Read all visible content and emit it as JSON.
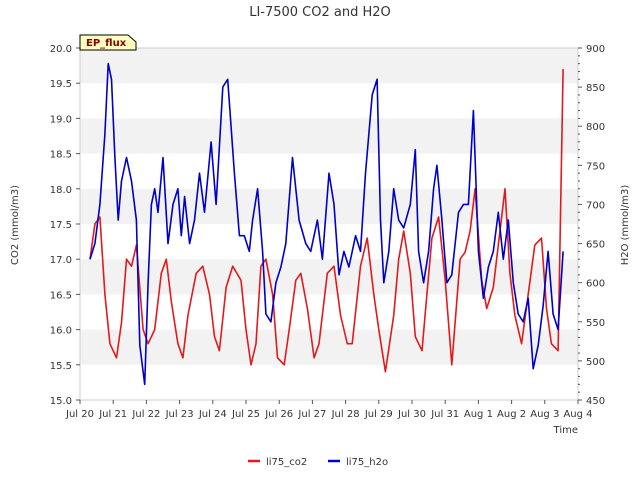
{
  "chart_data": {
    "type": "line",
    "title": "LI-7500 CO2 and H2O",
    "xlabel": "Time",
    "ylabel_left": "CO2 (mmol/m3)",
    "ylabel_right": "H2O (mmol/m3)",
    "badge": "EP_flux",
    "ylim_left": [
      15.0,
      20.0
    ],
    "ylim_right": [
      450,
      900
    ],
    "y_ticks_left": [
      "15.0",
      "15.5",
      "16.0",
      "16.5",
      "17.0",
      "17.5",
      "18.0",
      "18.5",
      "19.0",
      "19.5",
      "20.0"
    ],
    "y_ticks_right": [
      "450",
      "500",
      "550",
      "600",
      "650",
      "700",
      "750",
      "800",
      "850",
      "900"
    ],
    "x_ticks": [
      "Jul 20",
      "Jul 21",
      "Jul 22",
      "Jul 23",
      "Jul 24",
      "Jul 25",
      "Jul 26",
      "Jul 27",
      "Jul 28",
      "Jul 29",
      "Jul 30",
      "Jul 31",
      "Aug 1",
      "Aug 2",
      "Aug 3",
      "Aug 4"
    ],
    "x_range_days": [
      0,
      15
    ],
    "grid": "horizontal bands",
    "legend_position": "bottom",
    "series": [
      {
        "name": "li75_co2",
        "axis": "left",
        "color": "#e31a1c",
        "x": [
          0.3,
          0.45,
          0.6,
          0.75,
          0.9,
          1.1,
          1.25,
          1.4,
          1.55,
          1.7,
          1.9,
          2.05,
          2.25,
          2.45,
          2.6,
          2.75,
          2.95,
          3.1,
          3.25,
          3.5,
          3.7,
          3.9,
          4.05,
          4.2,
          4.4,
          4.6,
          4.85,
          5.0,
          5.15,
          5.3,
          5.45,
          5.6,
          5.8,
          5.95,
          6.15,
          6.3,
          6.5,
          6.65,
          6.85,
          7.05,
          7.2,
          7.45,
          7.65,
          7.85,
          8.05,
          8.2,
          8.45,
          8.65,
          8.85,
          9.0,
          9.2,
          9.45,
          9.6,
          9.75,
          9.95,
          10.1,
          10.3,
          10.45,
          10.6,
          10.8,
          11.0,
          11.2,
          11.45,
          11.6,
          11.75,
          11.9,
          12.1,
          12.25,
          12.45,
          12.6,
          12.8,
          12.95,
          13.1,
          13.3,
          13.5,
          13.7,
          13.9,
          14.05,
          14.2,
          14.4,
          14.55
        ],
        "values": [
          17.0,
          17.5,
          17.6,
          16.5,
          15.8,
          15.6,
          16.1,
          17.0,
          16.9,
          17.2,
          16.0,
          15.8,
          16.0,
          16.8,
          17.0,
          16.4,
          15.8,
          15.6,
          16.2,
          16.8,
          16.9,
          16.5,
          15.9,
          15.7,
          16.6,
          16.9,
          16.7,
          16.0,
          15.5,
          15.8,
          16.9,
          17.0,
          16.5,
          15.6,
          15.5,
          16.0,
          16.7,
          16.8,
          16.3,
          15.6,
          15.8,
          16.8,
          16.9,
          16.2,
          15.8,
          15.8,
          16.9,
          17.3,
          16.5,
          16.0,
          15.4,
          16.2,
          17.0,
          17.4,
          16.8,
          15.9,
          15.7,
          16.5,
          17.3,
          17.6,
          16.7,
          15.5,
          17.0,
          17.1,
          17.4,
          18.0,
          16.7,
          16.3,
          16.6,
          17.2,
          18.0,
          16.8,
          16.2,
          15.8,
          16.5,
          17.2,
          17.3,
          16.3,
          15.8,
          15.7,
          19.7
        ]
      },
      {
        "name": "li75_h2o",
        "axis": "right",
        "color": "#0000cc",
        "x": [
          0.3,
          0.45,
          0.6,
          0.75,
          0.85,
          0.95,
          1.05,
          1.15,
          1.25,
          1.4,
          1.55,
          1.7,
          1.8,
          1.95,
          2.05,
          2.15,
          2.25,
          2.35,
          2.5,
          2.65,
          2.8,
          2.95,
          3.05,
          3.15,
          3.3,
          3.45,
          3.6,
          3.75,
          3.95,
          4.1,
          4.3,
          4.45,
          4.65,
          4.8,
          4.95,
          5.1,
          5.2,
          5.35,
          5.5,
          5.6,
          5.75,
          5.9,
          6.05,
          6.2,
          6.4,
          6.6,
          6.8,
          6.95,
          7.15,
          7.3,
          7.5,
          7.65,
          7.8,
          7.95,
          8.1,
          8.3,
          8.45,
          8.6,
          8.8,
          8.95,
          9.05,
          9.15,
          9.3,
          9.45,
          9.6,
          9.75,
          9.95,
          10.1,
          10.2,
          10.35,
          10.5,
          10.65,
          10.75,
          10.9,
          11.05,
          11.2,
          11.4,
          11.55,
          11.7,
          11.85,
          12.0,
          12.15,
          12.3,
          12.45,
          12.6,
          12.75,
          12.9,
          13.05,
          13.2,
          13.35,
          13.5,
          13.65,
          13.8,
          13.95,
          14.1,
          14.25,
          14.4,
          14.55
        ],
        "values": [
          630,
          650,
          700,
          790,
          880,
          860,
          760,
          680,
          730,
          760,
          730,
          680,
          520,
          470,
          600,
          700,
          720,
          690,
          760,
          650,
          700,
          720,
          660,
          710,
          650,
          680,
          740,
          690,
          780,
          700,
          850,
          860,
          740,
          660,
          660,
          640,
          680,
          720,
          640,
          560,
          550,
          600,
          620,
          650,
          760,
          680,
          650,
          640,
          680,
          630,
          740,
          700,
          610,
          640,
          620,
          660,
          640,
          740,
          840,
          860,
          680,
          600,
          640,
          720,
          680,
          670,
          700,
          770,
          640,
          600,
          640,
          720,
          750,
          680,
          600,
          610,
          690,
          700,
          700,
          820,
          640,
          580,
          620,
          640,
          690,
          630,
          680,
          600,
          560,
          550,
          580,
          490,
          520,
          570,
          640,
          560,
          540,
          640
        ]
      }
    ]
  }
}
